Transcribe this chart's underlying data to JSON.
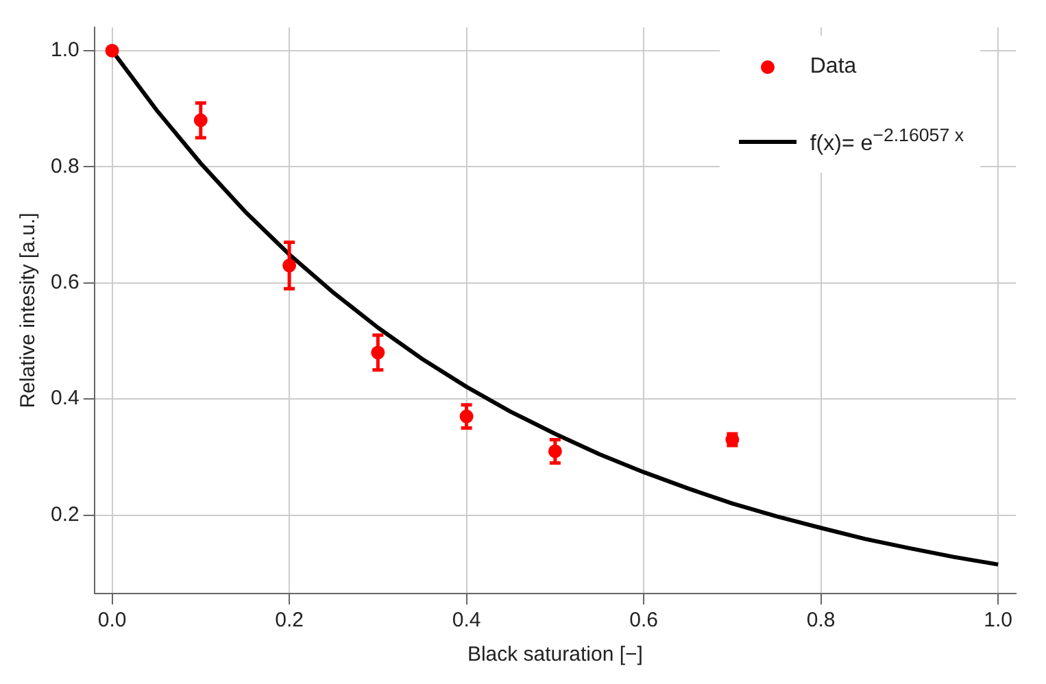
{
  "chart_data": {
    "type": "scatter",
    "xlabel": "Black saturation [−]",
    "ylabel": "Relative intesity [a.u.]",
    "xlim": [
      -0.02,
      1.02
    ],
    "ylim": [
      0.065,
      1.04
    ],
    "xticks": [
      {
        "value": 0,
        "label": "0.0"
      },
      0.2,
      0.4,
      0.6,
      0.8,
      {
        "value": 1,
        "label": "1.0"
      }
    ],
    "yticks": [
      0.2,
      0.4,
      0.6,
      0.8,
      {
        "value": 1,
        "label": "1.0"
      }
    ],
    "grid": true,
    "legend": "top right",
    "series": [
      {
        "name": "Data",
        "marker": "circle",
        "color": "#ff0000",
        "x": [
          0,
          0.1,
          0.2,
          0.3,
          0.4,
          0.5,
          0.7
        ],
        "values": [
          1.0,
          0.88,
          0.63,
          0.48,
          0.37,
          0.31,
          0.33
        ],
        "errors": [
          null,
          [
            0.85,
            0.91
          ],
          [
            0.59,
            0.67
          ],
          [
            0.45,
            0.51
          ],
          [
            0.35,
            0.39
          ],
          [
            0.29,
            0.33
          ],
          [
            0.32,
            0.34
          ]
        ]
      },
      {
        "name": "f(x)= e$^{−2.16057 x}$",
        "type": "line",
        "marker": "none",
        "color": "#000000",
        "x": [
          0,
          0.05,
          0.1,
          0.15,
          0.2,
          0.25,
          0.3,
          0.35,
          0.4,
          0.45,
          0.5,
          0.55,
          0.6,
          0.65,
          0.7,
          0.75,
          0.8,
          0.85,
          0.9,
          0.95,
          1.0
        ],
        "values": [
          1,
          0.898,
          0.806,
          0.723,
          0.649,
          0.583,
          0.523,
          0.469,
          0.421,
          0.378,
          0.34,
          0.305,
          0.274,
          0.246,
          0.22,
          0.198,
          0.178,
          0.159,
          0.143,
          0.128,
          0.115
        ]
      }
    ]
  }
}
